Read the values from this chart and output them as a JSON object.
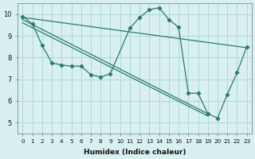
{
  "line1_x": [
    0,
    1,
    2,
    3,
    4,
    5,
    6,
    7,
    8,
    9,
    11,
    12,
    13,
    14,
    15,
    16,
    17,
    18,
    19,
    20,
    21,
    22,
    23
  ],
  "line1_y": [
    9.9,
    9.55,
    8.55,
    7.75,
    7.65,
    7.6,
    7.6,
    7.2,
    7.1,
    7.25,
    9.35,
    9.85,
    10.2,
    10.3,
    9.75,
    9.4,
    6.35,
    6.35,
    5.4,
    5.2,
    6.3,
    7.3,
    8.5
  ],
  "line2_x": [
    0,
    23
  ],
  "line2_y": [
    9.85,
    8.45
  ],
  "line3_x": [
    0,
    19
  ],
  "line3_y": [
    9.75,
    5.4
  ],
  "line4_x": [
    0,
    19
  ],
  "line4_y": [
    9.6,
    5.3
  ],
  "color": "#2a7a6e",
  "bg_color": "#d8f0ef",
  "grid_color": "#b0d8d4",
  "xlabel": "Humidex (Indice chaleur)",
  "ylim": [
    4.5,
    10.5
  ],
  "xlim": [
    -0.5,
    23.5
  ],
  "yticks": [
    5,
    6,
    7,
    8,
    9,
    10
  ],
  "xticks": [
    0,
    1,
    2,
    3,
    4,
    5,
    6,
    7,
    8,
    9,
    10,
    11,
    12,
    13,
    14,
    15,
    16,
    17,
    18,
    19,
    20,
    21,
    22,
    23
  ]
}
